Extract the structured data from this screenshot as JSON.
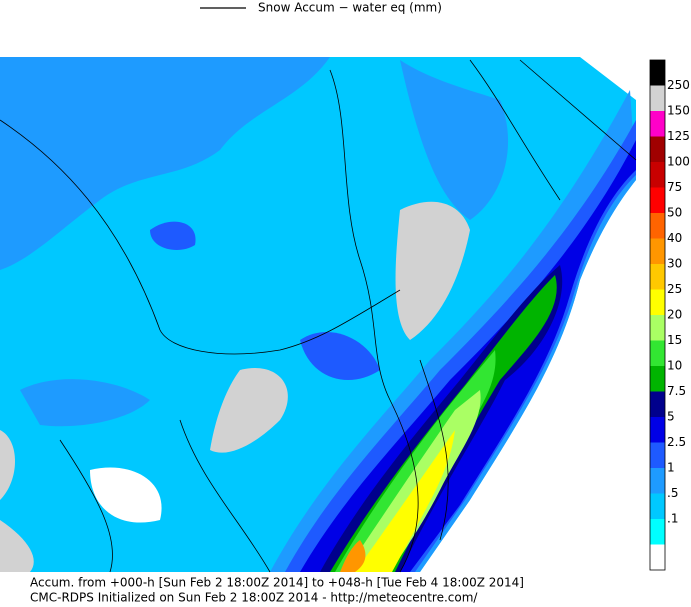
{
  "header": {
    "legend_label": "Snow Accum − water eq (mm)"
  },
  "colorbar": {
    "colors": [
      "#000000",
      "#d2d2d2",
      "#ff00c8",
      "#a00000",
      "#c80000",
      "#ff0000",
      "#ff6400",
      "#ff9600",
      "#ffc800",
      "#ffff00",
      "#aaff64",
      "#32e632",
      "#00b400",
      "#00008c",
      "#0000e6",
      "#1e5aff",
      "#1e9bff",
      "#00c8ff",
      "#00ffff",
      "#ffffff"
    ],
    "labels": [
      "250",
      "150",
      "125",
      "100",
      "75",
      "50",
      "40",
      "30",
      "25",
      "20",
      "15",
      "10",
      "7.5",
      "5",
      "2.5",
      "1",
      ".5",
      ".1"
    ]
  },
  "footer": {
    "line1": "Accum. from +000-h [Sun Feb 2 18:00Z 2014] to +048-h [Tue Feb 4 18:00Z 2014]",
    "line2": "CMC-RDPS Initialized on Sun Feb 2 18:00Z 2014 - http://meteocentre.com/"
  }
}
